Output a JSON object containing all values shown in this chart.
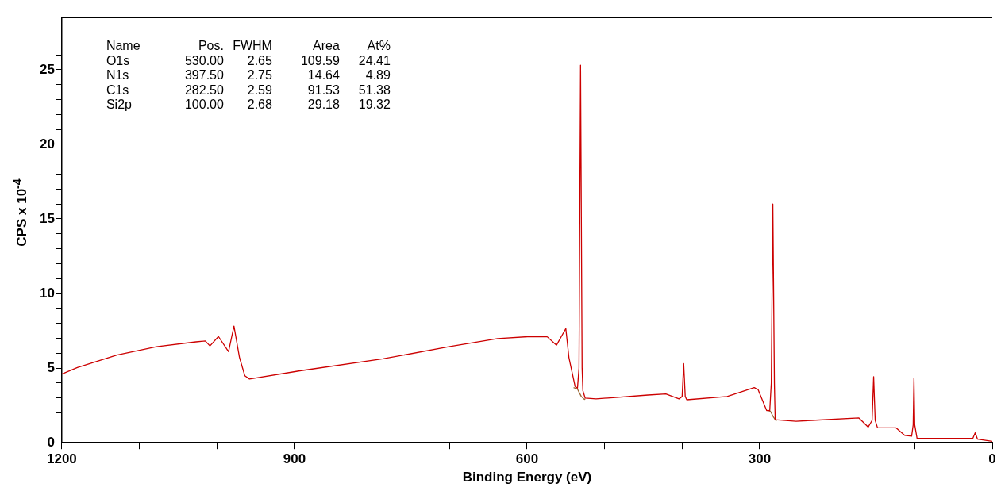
{
  "chart_data": {
    "type": "line",
    "xlabel": "Binding Energy (eV)",
    "ylabel": "CPS x 10$^{-4}$",
    "xlim": [
      1200,
      0
    ],
    "ylim": [
      0,
      28.5
    ],
    "xticks": [
      1200,
      {
        "value": 1100,
        "label": null
      },
      {
        "value": 1000,
        "label": null
      },
      900,
      {
        "value": 800,
        "label": null
      },
      {
        "value": 700,
        "label": null
      },
      600,
      {
        "value": 500,
        "label": null
      },
      {
        "value": 400,
        "label": null
      },
      300,
      {
        "value": 200,
        "label": null
      },
      {
        "value": 100,
        "label": null
      },
      0
    ],
    "yticks": [
      0,
      {
        "value": 1,
        "label": null
      },
      {
        "value": 2,
        "label": null
      },
      {
        "value": 3,
        "label": null
      },
      {
        "value": 4,
        "label": null
      },
      5,
      {
        "value": 6,
        "label": null
      },
      {
        "value": 7,
        "label": null
      },
      {
        "value": 8,
        "label": null
      },
      {
        "value": 9,
        "label": null
      },
      10,
      {
        "value": 11,
        "label": null
      },
      {
        "value": 12,
        "label": null
      },
      {
        "value": 13,
        "label": null
      },
      {
        "value": 14,
        "label": null
      },
      15,
      {
        "value": 16,
        "label": null
      },
      {
        "value": 17,
        "label": null
      },
      {
        "value": 18,
        "label": null
      },
      {
        "value": 19,
        "label": null
      },
      20,
      {
        "value": 21,
        "label": null
      },
      {
        "value": 22,
        "label": null
      },
      {
        "value": 23,
        "label": null
      },
      {
        "value": 24,
        "label": null
      },
      25,
      {
        "value": 26,
        "label": null
      },
      {
        "value": 27,
        "label": null
      },
      {
        "value": 28,
        "label": null
      }
    ],
    "grid": false,
    "legend": false,
    "marker": "none",
    "line_style": "solid",
    "annotations": [
      "Name",
      "Pos.",
      "FWHM",
      "Area",
      "At%",
      "O1s",
      "530.00",
      "2.65",
      "109.59",
      "24.41",
      "N1s",
      "397.50",
      "2.75",
      "14.64",
      "4.89",
      "C1s",
      "282.50",
      "2.59",
      "91.53",
      "51.38",
      "Si2p",
      "100.00",
      "2.68",
      "29.18",
      "19.32"
    ],
    "series": [
      {
        "color": "#cc0000",
        "x": [
          1200,
          1180,
          1129,
          1078,
          1027,
          1015,
          1009,
          998,
          985,
          978,
          971,
          964,
          958,
          893,
          786,
          701,
          638,
          595,
          574,
          562,
          550,
          546,
          538,
          535,
          533,
          531,
          529,
          528,
          525,
          511,
          444,
          421,
          404,
          400,
          398,
          396,
          394,
          342,
          307,
          302,
          291,
          287,
          285,
          283,
          281,
          280,
          253,
          233,
          172,
          160,
          155,
          153,
          151,
          148,
          124,
          113,
          104,
          102,
          101,
          100,
          97,
          57,
          25,
          22,
          19,
          0
        ],
        "values": [
          4.6,
          5.04,
          5.88,
          6.43,
          6.76,
          6.82,
          6.49,
          7.12,
          6.1,
          7.82,
          5.74,
          4.49,
          4.27,
          4.82,
          5.62,
          6.43,
          6.98,
          7.12,
          7.1,
          6.54,
          7.65,
          5.71,
          3.77,
          3.66,
          5,
          25.3,
          5,
          3.49,
          2.99,
          2.94,
          3.2,
          3.27,
          2.94,
          3.1,
          5.3,
          3.1,
          2.88,
          3.1,
          3.7,
          3.56,
          2.16,
          2.16,
          4,
          16,
          4,
          1.55,
          1.44,
          1.5,
          1.66,
          1.05,
          1.5,
          4.43,
          1.5,
          1,
          1,
          0.5,
          0.44,
          1.2,
          4.32,
          1.2,
          0.3,
          0.3,
          0.3,
          0.67,
          0.24,
          0.1
        ]
      },
      {
        "color": "#996633",
        "x": [
          540,
          535,
          530,
          526,
          525,
          null,
          290,
          286,
          282,
          279,
          278
        ],
        "values": [
          3.7,
          3.6,
          3.1,
          2.9,
          2.95,
          null,
          2.2,
          2.1,
          1.7,
          1.5,
          1.5
        ]
      }
    ]
  }
}
